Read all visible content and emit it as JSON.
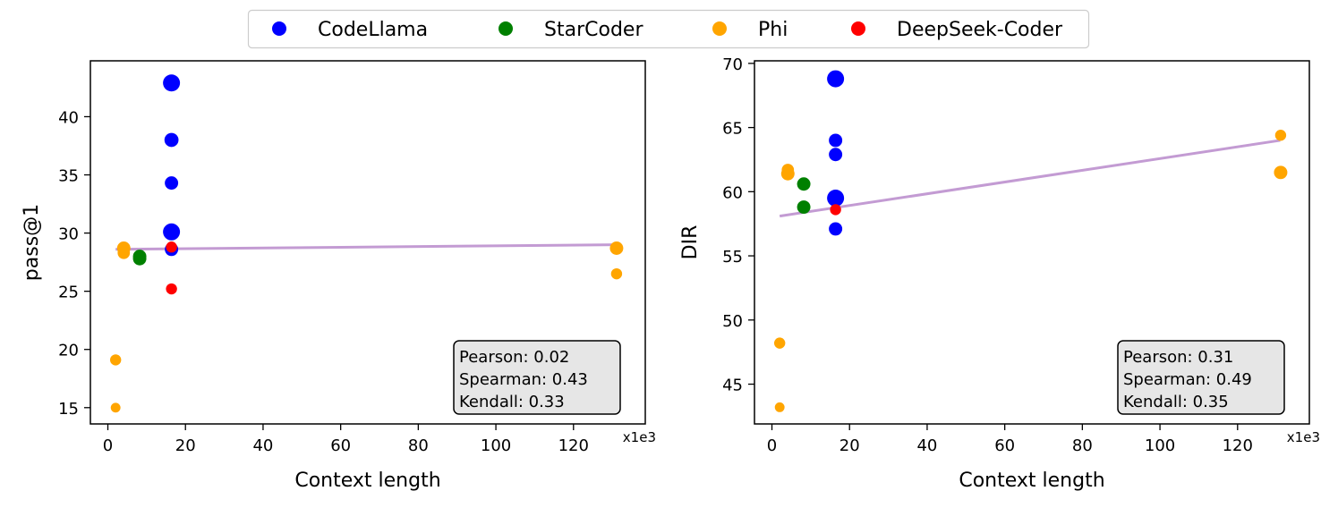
{
  "legend": {
    "placement": "top-center",
    "entries": [
      {
        "name": "CodeLlama",
        "color": "#0000ff"
      },
      {
        "name": "StarCoder",
        "color": "#008000"
      },
      {
        "name": "Phi",
        "color": "#ffa500"
      },
      {
        "name": "DeepSeek-Coder",
        "color": "#ff0000"
      }
    ]
  },
  "chart_data": [
    {
      "type": "scatter",
      "xlabel": "Context length",
      "ylabel": "pass@1",
      "x_multiplier": "x1e3",
      "xlim": [
        -4.5,
        138.5
      ],
      "ylim": [
        13.6,
        44.8
      ],
      "xticks": [
        0,
        20,
        40,
        60,
        80,
        100,
        120
      ],
      "yticks": [
        15,
        20,
        25,
        30,
        35,
        40
      ],
      "trend_line": {
        "color": "#c39bd3",
        "from": [
          2,
          28.6
        ],
        "to": [
          131,
          29.0
        ]
      },
      "stats": [
        "Pearson: 0.02",
        "Spearman: 0.43",
        "Kendall: 0.33"
      ],
      "series": [
        {
          "name": "CodeLlama",
          "color": "#0000ff",
          "points": [
            {
              "x": 16.4,
              "y": 42.9,
              "size": 3
            },
            {
              "x": 16.4,
              "y": 38.0,
              "size": 2
            },
            {
              "x": 16.4,
              "y": 34.3,
              "size": 1.8
            },
            {
              "x": 16.4,
              "y": 30.1,
              "size": 3
            },
            {
              "x": 16.4,
              "y": 28.6,
              "size": 1.8
            }
          ]
        },
        {
          "name": "StarCoder",
          "color": "#008000",
          "points": [
            {
              "x": 8.2,
              "y": 28.0,
              "size": 1.8
            },
            {
              "x": 8.2,
              "y": 27.8,
              "size": 1.8
            }
          ]
        },
        {
          "name": "Phi",
          "color": "#ffa500",
          "points": [
            {
              "x": 2.0,
              "y": 19.1,
              "size": 1.2
            },
            {
              "x": 2.0,
              "y": 15.0,
              "size": 0.9
            },
            {
              "x": 4.1,
              "y": 28.7,
              "size": 1.8
            },
            {
              "x": 4.1,
              "y": 28.3,
              "size": 1.5
            },
            {
              "x": 131.1,
              "y": 28.7,
              "size": 1.8
            },
            {
              "x": 131.1,
              "y": 26.5,
              "size": 1.2
            }
          ]
        },
        {
          "name": "DeepSeek-Coder",
          "color": "#ff0000",
          "points": [
            {
              "x": 16.4,
              "y": 28.8,
              "size": 1.2
            },
            {
              "x": 16.4,
              "y": 25.2,
              "size": 1.2
            }
          ]
        }
      ]
    },
    {
      "type": "scatter",
      "xlabel": "Context length",
      "ylabel": "DIR",
      "x_multiplier": "x1e3",
      "xlim": [
        -4.5,
        138.5
      ],
      "ylim": [
        41.9,
        70.2
      ],
      "xticks": [
        0,
        20,
        40,
        60,
        80,
        100,
        120
      ],
      "yticks": [
        45,
        50,
        55,
        60,
        65,
        70
      ],
      "trend_line": {
        "color": "#c39bd3",
        "from": [
          2,
          58.1
        ],
        "to": [
          131,
          64.0
        ]
      },
      "stats": [
        "Pearson: 0.31",
        "Spearman: 0.49",
        "Kendall: 0.35"
      ],
      "series": [
        {
          "name": "CodeLlama",
          "color": "#0000ff",
          "points": [
            {
              "x": 16.4,
              "y": 68.8,
              "size": 3
            },
            {
              "x": 16.4,
              "y": 64.0,
              "size": 1.8
            },
            {
              "x": 16.4,
              "y": 62.9,
              "size": 1.8
            },
            {
              "x": 16.4,
              "y": 59.5,
              "size": 3
            },
            {
              "x": 16.4,
              "y": 57.1,
              "size": 1.8
            }
          ]
        },
        {
          "name": "StarCoder",
          "color": "#008000",
          "points": [
            {
              "x": 8.2,
              "y": 60.6,
              "size": 1.8
            },
            {
              "x": 8.2,
              "y": 58.8,
              "size": 1.8
            }
          ]
        },
        {
          "name": "Phi",
          "color": "#ffa500",
          "points": [
            {
              "x": 2.0,
              "y": 48.2,
              "size": 1.2
            },
            {
              "x": 2.0,
              "y": 43.2,
              "size": 0.9
            },
            {
              "x": 4.1,
              "y": 61.7,
              "size": 1.5
            },
            {
              "x": 4.1,
              "y": 61.4,
              "size": 1.8
            },
            {
              "x": 131.1,
              "y": 64.4,
              "size": 1.2
            },
            {
              "x": 131.1,
              "y": 61.5,
              "size": 1.8
            }
          ]
        },
        {
          "name": "DeepSeek-Coder",
          "color": "#ff0000",
          "points": [
            {
              "x": 16.4,
              "y": 58.6,
              "size": 1.2
            }
          ]
        }
      ]
    }
  ]
}
